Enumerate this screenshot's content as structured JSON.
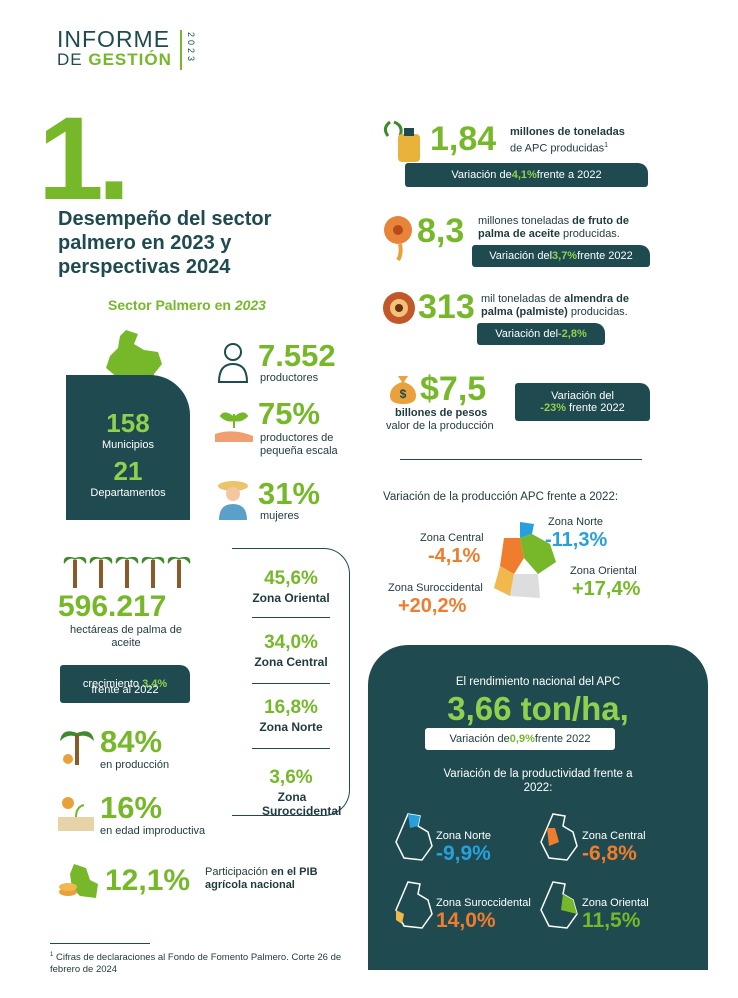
{
  "header": {
    "title": "INFORME",
    "subtitle_a": "DE ",
    "subtitle_b": "GESTIÓN",
    "year": "2023"
  },
  "section": {
    "number": "1.",
    "title": "Desempeño del sector palmero en 2023 y perspectivas 2024"
  },
  "sector": {
    "title_a": "Sector Palmero en ",
    "title_b": "2023",
    "municipios": {
      "value": "158",
      "label": "Municipios"
    },
    "departamentos": {
      "value": "21",
      "label": "Departamentos"
    },
    "productores": {
      "value": "7.552",
      "label": "productores"
    },
    "pequena_escala": {
      "value": "75%",
      "label": "productores de pequeña escala"
    },
    "mujeres": {
      "value": "31%",
      "label": "mujeres"
    },
    "hectareas": {
      "value": "596.217",
      "label": "hectáreas de palma de aceite",
      "growth_a": "crecimiento ",
      "growth_b": "3,4%",
      "growth_c": " frente al 2022"
    },
    "zones_share": [
      {
        "value": "45,6%",
        "name": "Zona Oriental"
      },
      {
        "value": "34,0%",
        "name": "Zona Central"
      },
      {
        "value": "16,8%",
        "name": "Zona Norte"
      },
      {
        "value": "3,6%",
        "name": "Zona Suroccidental"
      }
    ],
    "produccion": {
      "value": "84%",
      "label": "en producción"
    },
    "improductiva": {
      "value": "16%",
      "label": "en edad improductiva"
    },
    "pib": {
      "value": "12,1%",
      "label_a": "Participación ",
      "label_b": "en el PIB agrícola nacional"
    }
  },
  "apc": {
    "value": "1,84",
    "label_a": "millones de toneladas",
    "label_b": "de APC producidas",
    "mark": "1",
    "var_a": "Variación de ",
    "var_b": "4,1%",
    "var_c": " frente a 2022"
  },
  "fruto": {
    "value": "8,3",
    "label_a": "millones toneladas ",
    "label_b": "de fruto de palma de aceite",
    "label_c": " producidas.",
    "var_a": "Variación del ",
    "var_b": "3,7%",
    "var_c": " frente 2022"
  },
  "almendra": {
    "value": "313",
    "label_a": "mil toneladas de ",
    "label_b": "almendra de palma (palmiste)",
    "label_c": " producidas.",
    "var_a": "Variación del ",
    "var_b": "-2,8%"
  },
  "valor": {
    "value": "$7,5",
    "label_a": "billones de pesos",
    "label_b": "valor de la producción",
    "var_a": "Variación del",
    "var_b": "-23%",
    "var_c": " frente 2022"
  },
  "variacion_apc": {
    "title": "Variación de la producción APC frente a 2022:",
    "zones": [
      {
        "name": "Zona Central",
        "value": "-4,1%"
      },
      {
        "name": "Zona Norte",
        "value": "-11,3%"
      },
      {
        "name": "Zona Suroccidental",
        "value": "+20,2%"
      },
      {
        "name": "Zona Oriental",
        "value": "+17,4%"
      }
    ]
  },
  "rendimiento": {
    "title": "El rendimiento nacional del APC",
    "value": "3,66 ton/ha,",
    "var_a": "Variación de ",
    "var_b": "0,9%",
    "var_c": " frente 2022",
    "productividad_title": "Variación de la productividad frente a 2022:",
    "zones": [
      {
        "name": "Zona Norte",
        "value": "-9,9%"
      },
      {
        "name": "Zona Central",
        "value": "-6,8%"
      },
      {
        "name": "Zona Suroccidental",
        "value": "14,0%"
      },
      {
        "name": "Zona Oriental",
        "value": "11,5%"
      }
    ]
  },
  "footnote": {
    "mark": "1",
    "text": "Cifras de declaraciones al Fondo de Fomento Palmero. Corte 26 de febrero de 2024"
  }
}
